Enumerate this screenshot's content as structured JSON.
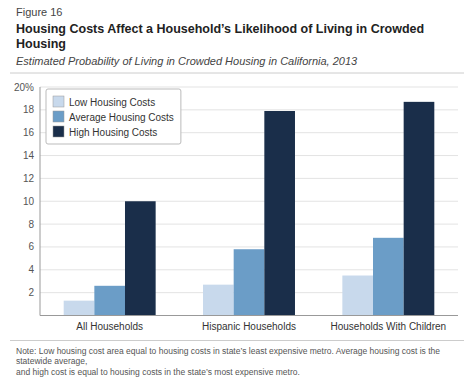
{
  "chart_data": {
    "type": "bar",
    "title": "Housing Costs Affect a Household’s Likelihood of Living in Crowded Housing",
    "subtitle": "Estimated Probability of Living in Crowded Housing in California, 2013",
    "annotations": [
      "Figure 16",
      "Note: Low housing cost area equal to housing costs in state’s least expensive metro. Average housing cost is the statewide average,\nand high cost is equal to housing costs in the state’s most expensive metro."
    ],
    "categories": [
      "All Households",
      "Hispanic Households",
      "Households With Children"
    ],
    "series": [
      {
        "name": "Low Housing Costs",
        "color": "#c8d9ec",
        "values": [
          1.3,
          2.7,
          3.5
        ]
      },
      {
        "name": "Average Housing Costs",
        "color": "#6b9dc7",
        "values": [
          2.6,
          5.8,
          6.8
        ]
      },
      {
        "name": "High Housing Costs",
        "color": "#1a2e4a",
        "values": [
          10.0,
          17.9,
          18.7
        ]
      }
    ],
    "ylim": [
      0,
      20
    ],
    "yticks": [
      2,
      4,
      6,
      8,
      10,
      12,
      14,
      16,
      18,
      {
        "value": 20,
        "label": "20%"
      }
    ],
    "grid": true,
    "legend": "upper left"
  }
}
